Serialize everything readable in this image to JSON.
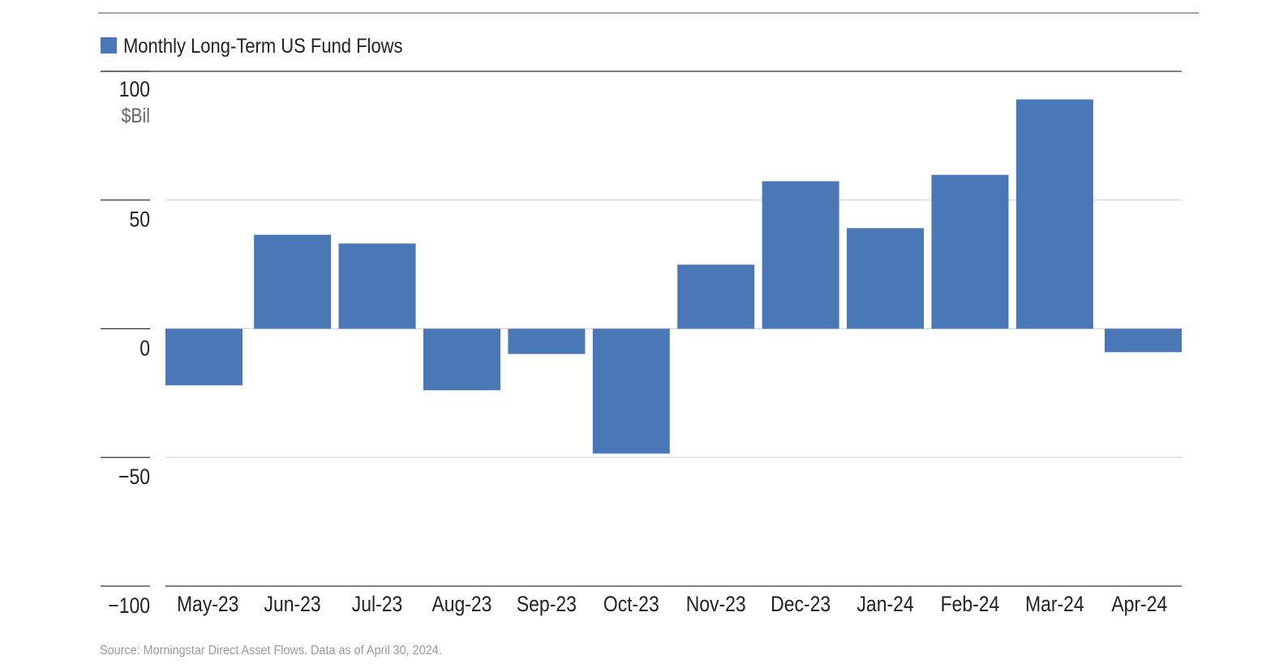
{
  "chart_data": {
    "type": "bar",
    "title": "",
    "legend": [
      {
        "name": "Monthly Long-Term US Fund Flows",
        "color": "#4a77b5"
      }
    ],
    "legend_placement": "top-left",
    "unit_label": "$Bil",
    "categories": [
      "May-23",
      "Jun-23",
      "Jul-23",
      "Aug-23",
      "Sep-23",
      "Oct-23",
      "Nov-23",
      "Dec-23",
      "Jan-24",
      "Feb-24",
      "Mar-24",
      "Apr-24"
    ],
    "series": [
      {
        "name": "Monthly Long-Term US Fund Flows",
        "values": [
          -22.0,
          36.5,
          33.1,
          -23.9,
          -9.8,
          -48.5,
          24.9,
          57.3,
          39.1,
          59.8,
          89.1,
          -9.1
        ]
      }
    ],
    "ylim": [
      -100,
      100
    ],
    "yticks": [
      100,
      50,
      0,
      -50,
      -100
    ],
    "ytick_labels": [
      "100",
      "50",
      "0",
      "−50",
      "−100"
    ],
    "grid": true,
    "xlabel": "",
    "ylabel": ""
  },
  "source": "Source: Morningstar Direct Asset Flows. Data as of April 30, 2024."
}
